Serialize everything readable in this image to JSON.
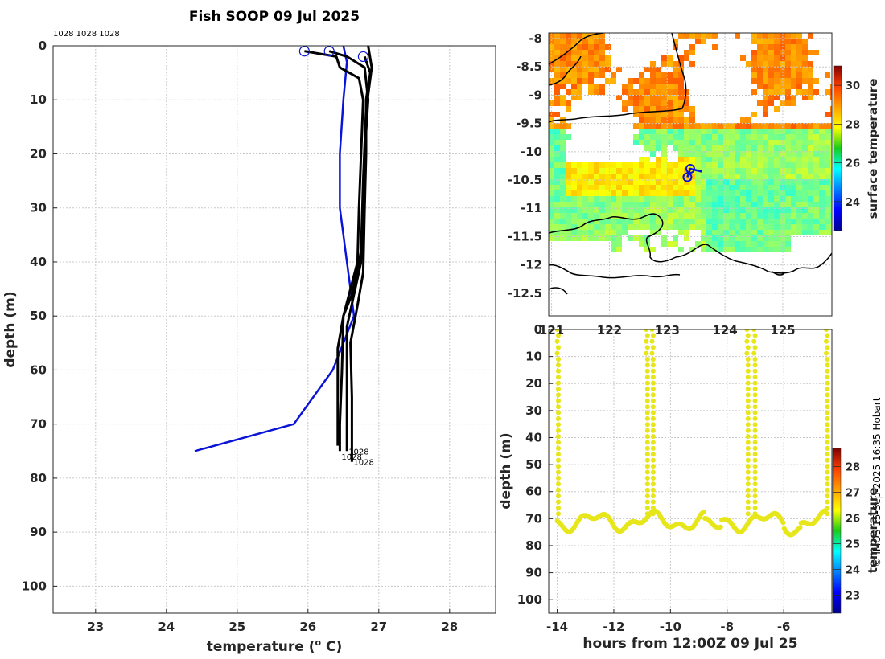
{
  "figure": {
    "title": "Fish SOOP 09 Jul 2025",
    "copyright": "© IMOS 15-Sep-2025 16:35 Hobart",
    "top_annotation": "1028 1028 1028",
    "colors": {
      "profile": "#000000",
      "climatology": "#0a14d6",
      "marker": "#0a14d6"
    }
  },
  "chart_data": [
    {
      "name": "profile",
      "type": "line",
      "xlabel": "temperature (o C)",
      "xlabel_main": "temperature (",
      "xlabel_sup": "o",
      "xlabel_end": " C)",
      "ylabel": "depth (m)",
      "xlim": [
        22.4,
        28.65
      ],
      "ylim": [
        0,
        105
      ],
      "y_reversed": true,
      "xticks": [
        23,
        24,
        25,
        26,
        27,
        28
      ],
      "yticks": [
        0,
        10,
        20,
        30,
        40,
        50,
        60,
        70,
        80,
        90,
        100
      ],
      "grid": true,
      "series": [
        {
          "name": "climatology",
          "color": "#0a14d6",
          "points": [
            [
              26.5,
              0
            ],
            [
              26.55,
              3
            ],
            [
              26.5,
              10
            ],
            [
              26.45,
              20
            ],
            [
              26.45,
              30
            ],
            [
              26.55,
              40
            ],
            [
              26.65,
              50
            ],
            [
              26.35,
              60
            ],
            [
              25.8,
              70
            ],
            [
              24.4,
              75
            ]
          ]
        },
        {
          "name": "cast-1",
          "color": "#000000",
          "points": [
            [
              25.95,
              1
            ],
            [
              26.4,
              2
            ],
            [
              26.45,
              4
            ],
            [
              26.72,
              6
            ],
            [
              26.78,
              10
            ],
            [
              26.75,
              20
            ],
            [
              26.72,
              30
            ],
            [
              26.7,
              40
            ],
            [
              26.6,
              45
            ],
            [
              26.5,
              50
            ],
            [
              26.48,
              60
            ],
            [
              26.45,
              70
            ],
            [
              26.45,
              75
            ]
          ]
        },
        {
          "name": "cast-2",
          "color": "#000000",
          "points": [
            [
              26.3,
              1
            ],
            [
              26.55,
              2
            ],
            [
              26.8,
              4
            ],
            [
              26.85,
              10
            ],
            [
              26.8,
              20
            ],
            [
              26.78,
              30
            ],
            [
              26.75,
              40
            ],
            [
              26.65,
              46
            ],
            [
              26.55,
              52
            ],
            [
              26.55,
              60
            ],
            [
              26.55,
              70
            ],
            [
              26.55,
              75
            ]
          ]
        },
        {
          "name": "cast-3",
          "color": "#000000",
          "points": [
            [
              26.8,
              2
            ],
            [
              26.88,
              5
            ],
            [
              26.82,
              10
            ],
            [
              26.82,
              20
            ],
            [
              26.8,
              30
            ],
            [
              26.78,
              42
            ],
            [
              26.7,
              48
            ],
            [
              26.6,
              55
            ],
            [
              26.62,
              65
            ],
            [
              26.62,
              72
            ],
            [
              26.62,
              77
            ]
          ]
        },
        {
          "name": "cast-4",
          "color": "#000000",
          "points": [
            [
              26.85,
              0
            ],
            [
              26.9,
              4
            ],
            [
              26.82,
              12
            ],
            [
              26.78,
              25
            ],
            [
              26.75,
              38
            ],
            [
              26.62,
              46
            ],
            [
              26.5,
              50
            ],
            [
              26.42,
              56
            ],
            [
              26.42,
              66
            ],
            [
              26.42,
              74
            ]
          ]
        }
      ],
      "markers": [
        {
          "x": 25.95,
          "y": 1,
          "label": ""
        },
        {
          "x": 26.3,
          "y": 1,
          "label": ""
        },
        {
          "x": 26.78,
          "y": 2,
          "label": ""
        }
      ],
      "end_labels": [
        {
          "x": 26.55,
          "y": 75,
          "label": "1028"
        },
        {
          "x": 26.45,
          "y": 76,
          "label": "1028"
        },
        {
          "x": 26.62,
          "y": 77,
          "label": "1028"
        }
      ]
    },
    {
      "name": "sst-map",
      "type": "heatmap",
      "colorbar_label": "surface temperature",
      "xlim": [
        120.95,
        125.85
      ],
      "ylim": [
        -12.9,
        -7.9
      ],
      "xticks": [
        121,
        122,
        123,
        124,
        125
      ],
      "xtick_labels": [
        "121",
        "122",
        "123",
        "124",
        "125"
      ],
      "yticks": [
        -8,
        -8.5,
        -9,
        -9.5,
        -10,
        -10.5,
        -11,
        -11.5,
        -12,
        -12.5
      ],
      "ytick_labels": [
        "-8",
        "-8.5",
        "-9",
        "-9.5",
        "-10",
        "-10.5",
        "-11",
        "-11.5",
        "-12",
        "-12.5"
      ],
      "colorbar_range": [
        22.5,
        31
      ],
      "colorbar_ticks": [
        24,
        26,
        28,
        30
      ],
      "track": [
        [
          123.35,
          -10.45
        ],
        [
          123.4,
          -10.3
        ],
        [
          123.6,
          -10.35
        ]
      ],
      "grid": true
    },
    {
      "name": "depth-time",
      "type": "scatter",
      "xlabel": "hours from 12:00Z 09 Jul 25",
      "ylabel": "depth (m)",
      "colorbar_label": "temperature",
      "xlim": [
        -14.3,
        -4.3
      ],
      "ylim": [
        0,
        105
      ],
      "y_reversed": true,
      "xticks": [
        -14,
        -12,
        -10,
        -8,
        -6
      ],
      "yticks": [
        0,
        10,
        20,
        30,
        40,
        50,
        60,
        70,
        80,
        90,
        100
      ],
      "colorbar_range": [
        22.3,
        28.7
      ],
      "colorbar_ticks": [
        23,
        24,
        25,
        26,
        27,
        28
      ],
      "point_color": "#e6e61a",
      "grid": true
    }
  ]
}
